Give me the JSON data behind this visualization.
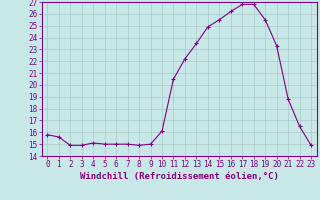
{
  "x": [
    0,
    1,
    2,
    3,
    4,
    5,
    6,
    7,
    8,
    9,
    10,
    11,
    12,
    13,
    14,
    15,
    16,
    17,
    18,
    19,
    20,
    21,
    22,
    23
  ],
  "y": [
    15.8,
    15.6,
    14.9,
    14.9,
    15.1,
    15.0,
    15.0,
    15.0,
    14.9,
    15.0,
    16.1,
    20.5,
    22.2,
    23.5,
    24.9,
    25.5,
    26.2,
    26.8,
    26.8,
    25.5,
    23.3,
    18.8,
    16.5,
    14.9
  ],
  "line_color": "#800080",
  "marker": "+",
  "bg_color": "#c8e8e8",
  "grid_color": "#a8c8cc",
  "xlabel": "Windchill (Refroidissement éolien,°C)",
  "ylim": [
    14,
    27
  ],
  "xlim": [
    -0.5,
    23.5
  ],
  "yticks": [
    14,
    15,
    16,
    17,
    18,
    19,
    20,
    21,
    22,
    23,
    24,
    25,
    26,
    27
  ],
  "xticks": [
    0,
    1,
    2,
    3,
    4,
    5,
    6,
    7,
    8,
    9,
    10,
    11,
    12,
    13,
    14,
    15,
    16,
    17,
    18,
    19,
    20,
    21,
    22,
    23
  ],
  "tick_color": "#800080",
  "label_color": "#800080",
  "axis_color": "#800080",
  "tick_font_size": 5.5,
  "label_font_size": 6.5
}
